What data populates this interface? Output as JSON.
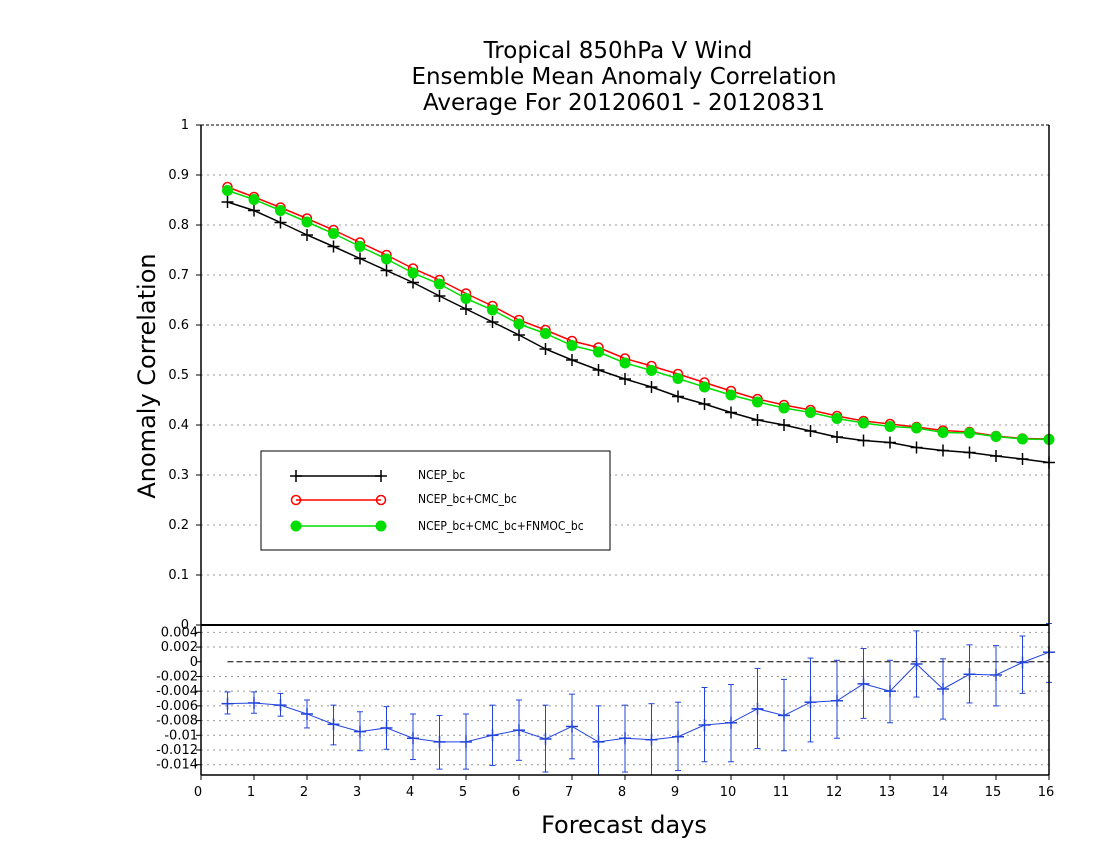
{
  "chart_data": [
    {
      "type": "line",
      "title": [
        "Tropical 850hPa V Wind",
        "Ensemble Mean Anomaly Correlation",
        "Average For 20120601 - 20120831"
      ],
      "xlabel": "",
      "ylabel": "Anomaly Correlation",
      "xlim": [
        0,
        16
      ],
      "ylim": [
        0,
        1
      ],
      "yticks": [
        "0",
        "0.1",
        "0.2",
        "0.3",
        "0.4",
        "0.5",
        "0.6",
        "0.7",
        "0.8",
        "0.9",
        "1"
      ],
      "grid": true,
      "legend": "lower-left",
      "x": [
        0.5,
        1,
        1.5,
        2,
        2.5,
        3,
        3.5,
        4,
        4.5,
        5,
        5.5,
        6,
        6.5,
        7,
        7.5,
        8,
        8.5,
        9,
        9.5,
        10,
        10.5,
        11,
        11.5,
        12,
        12.5,
        13,
        13.5,
        14,
        14.5,
        15,
        15.5,
        16
      ],
      "series": [
        {
          "name": "NCEP_bc",
          "color": "#000000",
          "marker": "plus",
          "values": [
            0.846,
            0.829,
            0.805,
            0.78,
            0.757,
            0.733,
            0.709,
            0.685,
            0.658,
            0.632,
            0.606,
            0.58,
            0.552,
            0.53,
            0.51,
            0.492,
            0.476,
            0.457,
            0.442,
            0.425,
            0.41,
            0.4,
            0.388,
            0.376,
            0.369,
            0.365,
            0.355,
            0.349,
            0.345,
            0.338,
            0.332,
            0.325
          ]
        },
        {
          "name": "NCEP_bc+CMC_bc",
          "color": "#ff0000",
          "marker": "open-circle",
          "values": [
            0.876,
            0.856,
            0.835,
            0.813,
            0.79,
            0.765,
            0.74,
            0.713,
            0.69,
            0.663,
            0.638,
            0.61,
            0.59,
            0.568,
            0.555,
            0.533,
            0.518,
            0.502,
            0.485,
            0.468,
            0.452,
            0.44,
            0.43,
            0.418,
            0.408,
            0.402,
            0.396,
            0.389,
            0.386,
            0.378,
            0.373,
            0.372
          ]
        },
        {
          "name": "NCEP_bc+CMC_bc+FNMOC_bc",
          "color": "#00dd00",
          "marker": "filled-circle",
          "values": [
            0.869,
            0.851,
            0.829,
            0.806,
            0.783,
            0.757,
            0.732,
            0.704,
            0.682,
            0.653,
            0.63,
            0.602,
            0.583,
            0.559,
            0.546,
            0.524,
            0.509,
            0.493,
            0.476,
            0.46,
            0.446,
            0.434,
            0.425,
            0.413,
            0.404,
            0.397,
            0.394,
            0.385,
            0.384,
            0.377,
            0.372,
            0.371
          ]
        }
      ]
    },
    {
      "type": "line",
      "title": "",
      "xlabel": "Forecast days",
      "ylabel": "",
      "xlim": [
        0,
        16
      ],
      "ylim": [
        -0.0154,
        0.005
      ],
      "xticks": [
        "0",
        "1",
        "2",
        "3",
        "4",
        "5",
        "6",
        "7",
        "8",
        "9",
        "10",
        "11",
        "12",
        "13",
        "14",
        "15",
        "16"
      ],
      "yticks": [
        "0.004",
        "0.002",
        "0",
        "-0.002",
        "-0.004",
        "-0.006",
        "-0.008",
        "-0.01",
        "-0.012",
        "-0.014"
      ],
      "grid": true,
      "x": [
        0.5,
        1,
        1.5,
        2,
        2.5,
        3,
        3.5,
        4,
        4.5,
        5,
        5.5,
        6,
        6.5,
        7,
        7.5,
        8,
        8.5,
        9,
        9.5,
        10,
        10.5,
        11,
        11.5,
        12,
        12.5,
        13,
        13.5,
        14,
        14.5,
        15,
        15.5,
        16
      ],
      "series": [
        {
          "color": "#2244dd",
          "values": [
            -0.0057,
            -0.0056,
            -0.0059,
            -0.0071,
            -0.0085,
            -0.0095,
            -0.009,
            -0.0104,
            -0.0109,
            -0.0109,
            -0.01,
            -0.0093,
            -0.0105,
            -0.0088,
            -0.0109,
            -0.0104,
            -0.0106,
            -0.0102,
            -0.0086,
            -0.0083,
            -0.0064,
            -0.0073,
            -0.0055,
            -0.0053,
            -0.003,
            -0.004,
            -0.0003,
            -0.0037,
            -0.0017,
            -0.0018,
            -0.0001,
            0.0013
          ],
          "error_low": [
            -0.0071,
            -0.007,
            -0.0074,
            -0.009,
            -0.0113,
            -0.0121,
            -0.0119,
            -0.0133,
            -0.0146,
            -0.0146,
            -0.0141,
            -0.0134,
            -0.015,
            -0.0132,
            -0.0154,
            -0.015,
            -0.0156,
            -0.0148,
            -0.0136,
            -0.0136,
            -0.0118,
            -0.0121,
            -0.0109,
            -0.0104,
            -0.0077,
            -0.0083,
            -0.0048,
            -0.0078,
            -0.0056,
            -0.006,
            -0.0043,
            -0.0028
          ],
          "error_high": [
            -0.0041,
            -0.0041,
            -0.0043,
            -0.0052,
            -0.0059,
            -0.0068,
            -0.0061,
            -0.0071,
            -0.0073,
            -0.0071,
            -0.0059,
            -0.0052,
            -0.0059,
            -0.0044,
            -0.006,
            -0.0059,
            -0.0057,
            -0.0055,
            -0.0035,
            -0.0031,
            -0.0009,
            -0.0024,
            0.0005,
            0.0002,
            0.0018,
            0.0002,
            0.0042,
            0.0004,
            0.0023,
            0.0022,
            0.0035,
            0.0052
          ]
        }
      ]
    }
  ]
}
